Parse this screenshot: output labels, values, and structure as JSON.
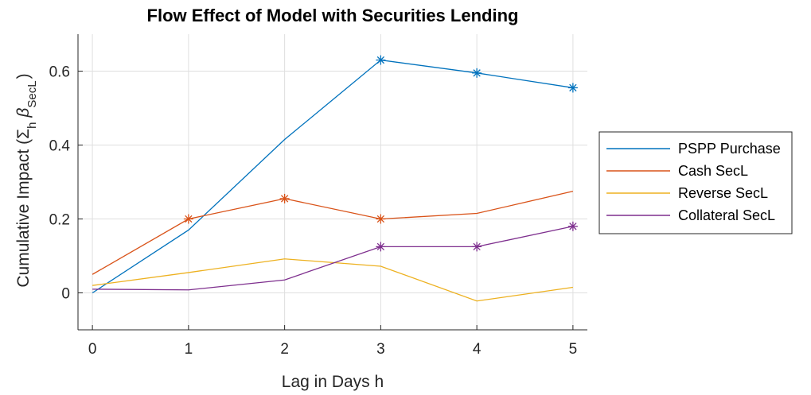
{
  "chart_data": {
    "type": "line",
    "title": "Flow Effect of Model with Securities Lending",
    "xlabel": "Lag in Days h",
    "ylabel": {
      "prefix": "Cumulative Impact (",
      "sigma": "Σ",
      "sigma_sub": "h",
      "beta": "β",
      "beta_sub": "SecL",
      "suffix": ")"
    },
    "x": [
      0,
      1,
      2,
      3,
      4,
      5
    ],
    "xlim": [
      -0.15,
      5.15
    ],
    "ylim": [
      -0.1,
      0.7
    ],
    "xticks": [
      "0",
      "1",
      "2",
      "3",
      "4",
      "5"
    ],
    "yticks": [
      0,
      0.2,
      0.4,
      0.6
    ],
    "ytick_labels": [
      "0",
      "0.2",
      "0.4",
      "0.6"
    ],
    "grid": true,
    "legend_position": "outside-right",
    "series": [
      {
        "name": "PSPP Purchase",
        "color": "#0072BD",
        "values": [
          0.0,
          0.17,
          0.415,
          0.63,
          0.595,
          0.555
        ],
        "markers": [
          3,
          4,
          5
        ]
      },
      {
        "name": "Cash SecL",
        "color": "#D95319",
        "values": [
          0.05,
          0.2,
          0.255,
          0.2,
          0.215,
          0.275
        ],
        "markers": [
          1,
          2,
          3
        ]
      },
      {
        "name": "Reverse SecL",
        "color": "#EDB120",
        "values": [
          0.02,
          0.055,
          0.092,
          0.072,
          -0.022,
          0.015
        ],
        "markers": []
      },
      {
        "name": "Collateral SecL",
        "color": "#7E2F8E",
        "values": [
          0.01,
          0.008,
          0.035,
          0.125,
          0.125,
          0.18
        ],
        "markers": [
          3,
          4,
          5
        ]
      }
    ],
    "marker_style": "asterisk"
  }
}
